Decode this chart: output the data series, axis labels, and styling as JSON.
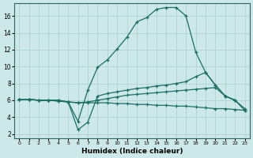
{
  "xlabel": "Humidex (Indice chaleur)",
  "bg_color": "#cce8e8",
  "grid_color": "#aacece",
  "line_color": "#1a6e64",
  "xlim": [
    -0.5,
    23.5
  ],
  "ylim": [
    1.5,
    17.5
  ],
  "yticks": [
    2,
    4,
    6,
    8,
    10,
    12,
    14,
    16
  ],
  "xticks": [
    0,
    1,
    2,
    3,
    4,
    5,
    6,
    7,
    8,
    9,
    10,
    11,
    12,
    13,
    14,
    15,
    16,
    17,
    18,
    19,
    20,
    21,
    22,
    23
  ],
  "lines": [
    {
      "x": [
        0,
        1,
        2,
        3,
        4,
        5,
        6,
        7,
        8,
        9,
        10,
        11,
        12,
        13,
        14,
        15,
        16,
        17,
        18,
        19,
        20,
        21,
        22,
        23
      ],
      "y": [
        6.1,
        6.1,
        6.0,
        6.0,
        6.0,
        5.8,
        3.5,
        7.2,
        9.9,
        10.8,
        12.1,
        13.5,
        15.3,
        15.8,
        16.8,
        17.0,
        17.0,
        16.0,
        11.7,
        9.3,
        7.8,
        6.5,
        6.0,
        null
      ]
    },
    {
      "x": [
        0,
        1,
        2,
        3,
        4,
        5,
        6,
        7,
        8,
        9,
        10,
        11,
        12,
        13,
        14,
        15,
        16,
        17,
        18,
        19,
        20,
        21,
        22,
        23
      ],
      "y": [
        6.1,
        6.1,
        6.0,
        6.0,
        6.0,
        5.8,
        2.5,
        3.4,
        6.5,
        6.8,
        7.0,
        7.2,
        7.4,
        7.5,
        7.7,
        7.8,
        8.0,
        8.2,
        8.8,
        9.3,
        7.8,
        6.5,
        6.0,
        5.0
      ]
    },
    {
      "x": [
        0,
        1,
        2,
        3,
        4,
        5,
        6,
        7,
        8,
        9,
        10,
        11,
        12,
        13,
        14,
        15,
        16,
        17,
        18,
        19,
        20,
        21,
        22,
        23
      ],
      "y": [
        6.1,
        6.1,
        6.0,
        6.0,
        5.9,
        5.8,
        5.7,
        5.8,
        6.0,
        6.2,
        6.4,
        6.6,
        6.7,
        6.8,
        6.9,
        7.0,
        7.1,
        7.2,
        7.3,
        7.4,
        7.5,
        6.5,
        6.0,
        4.8
      ]
    },
    {
      "x": [
        0,
        1,
        2,
        3,
        4,
        5,
        6,
        7,
        8,
        9,
        10,
        11,
        12,
        13,
        14,
        15,
        16,
        17,
        18,
        19,
        20,
        21,
        22,
        23
      ],
      "y": [
        6.1,
        6.1,
        6.0,
        6.0,
        5.9,
        5.8,
        5.7,
        5.7,
        5.7,
        5.7,
        5.6,
        5.6,
        5.5,
        5.5,
        5.4,
        5.4,
        5.3,
        5.3,
        5.2,
        5.1,
        5.0,
        5.0,
        4.9,
        4.8
      ]
    }
  ]
}
